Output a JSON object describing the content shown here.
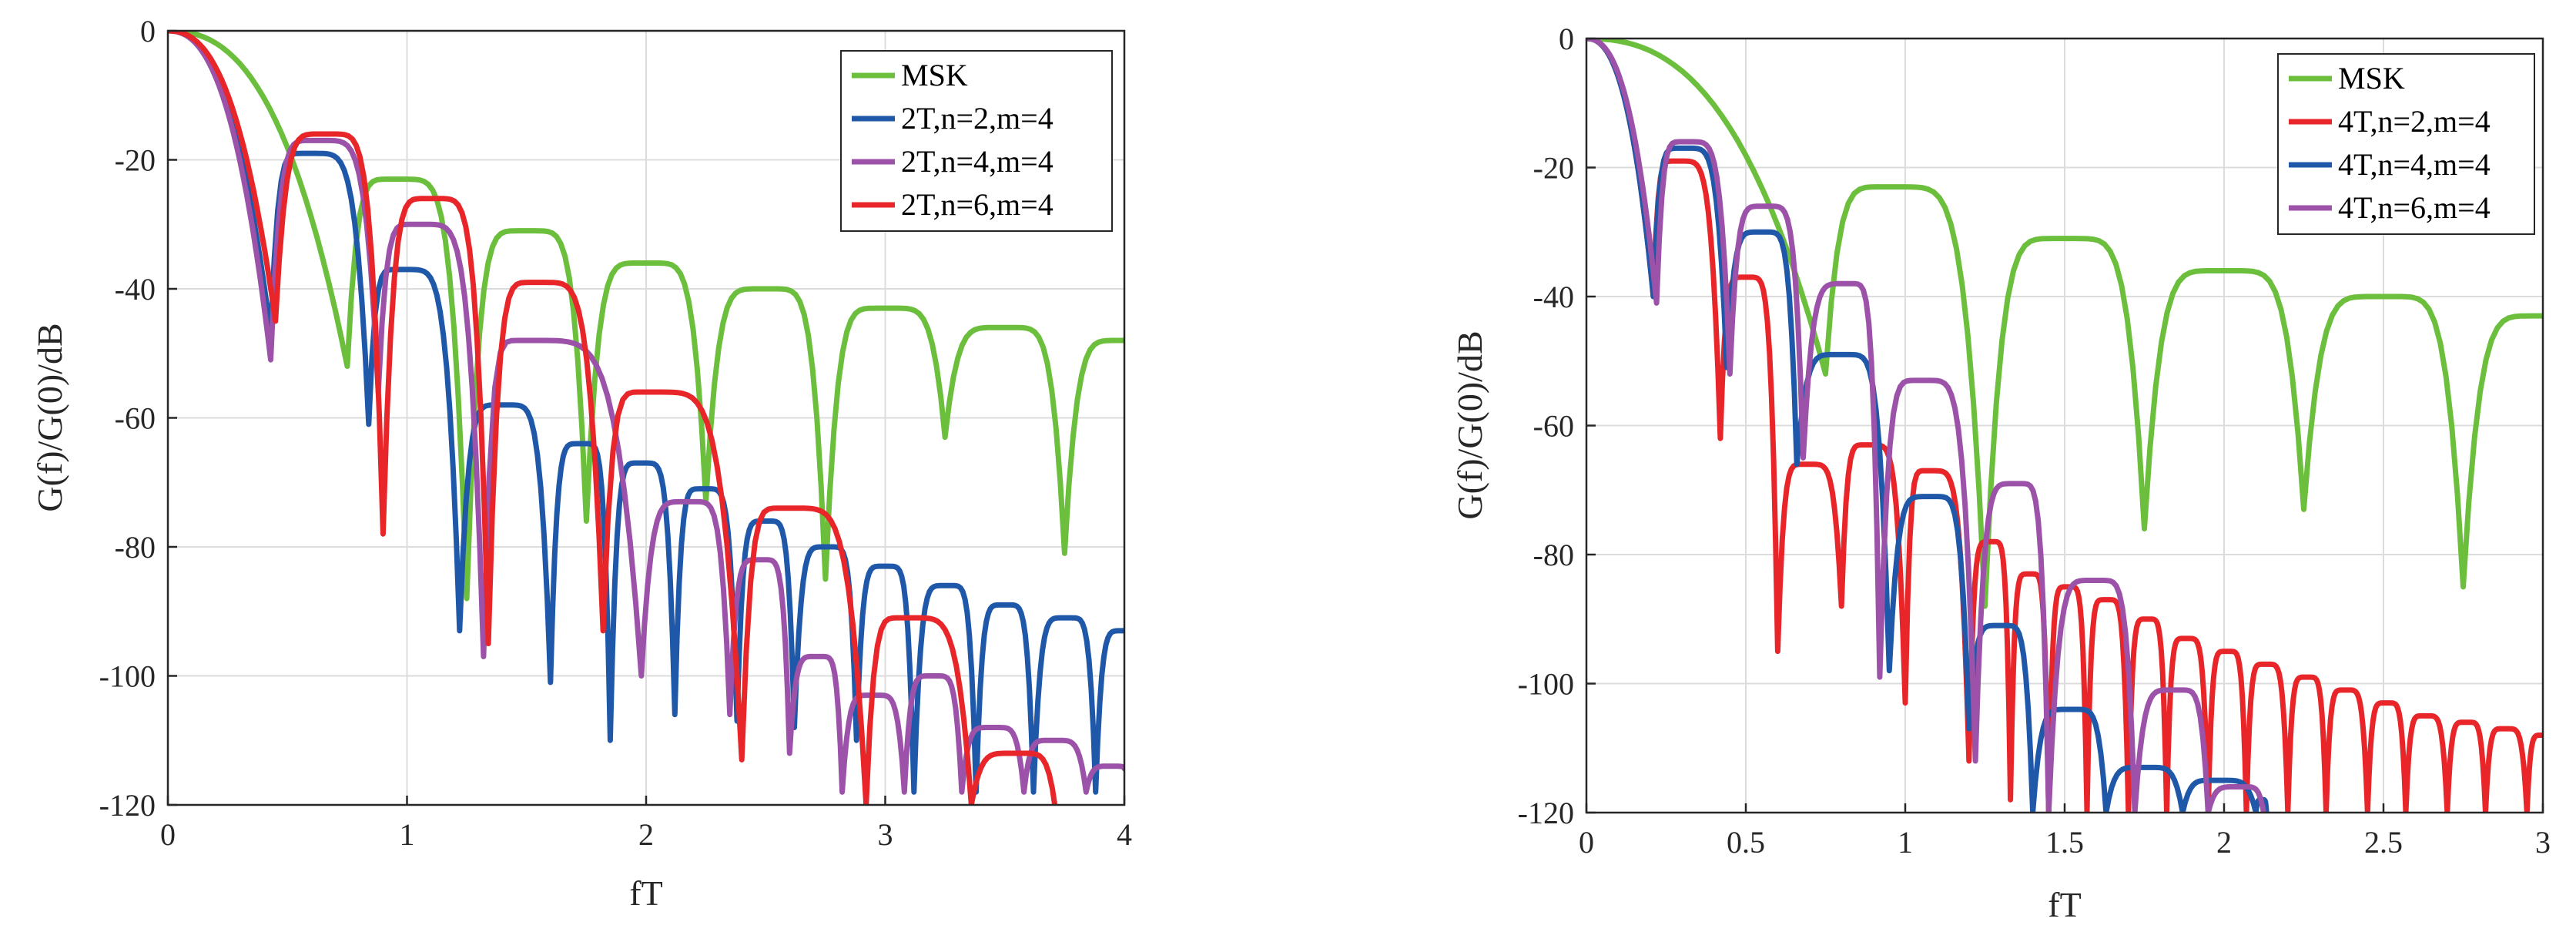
{
  "chart_data": [
    {
      "type": "line",
      "xlabel": "fT",
      "ylabel": "G(f)/G(0)/dB",
      "xlim": [
        0,
        4
      ],
      "ylim": [
        -120,
        0
      ],
      "xticks": [
        0,
        1,
        2,
        3,
        4
      ],
      "xtick_labels": [
        "0",
        "1",
        "2",
        "3",
        "4"
      ],
      "yticks": [
        0,
        -20,
        -40,
        -60,
        -80,
        -100,
        -120
      ],
      "ytick_labels": [
        "0",
        "-20",
        "-40",
        "-60",
        "-80",
        "-100",
        "-120"
      ],
      "grid": true,
      "legend_position": "top-right",
      "series": [
        {
          "name": "MSK",
          "color": "#6cbf3c",
          "nulls": [
            0.75,
            1.25,
            1.75,
            2.25,
            2.75,
            3.25,
            3.75
          ],
          "peaks": [
            [
              0.95,
              -23
            ],
            [
              1.5,
              -31
            ],
            [
              2.0,
              -36
            ],
            [
              2.5,
              -40
            ],
            [
              3.0,
              -43
            ],
            [
              3.5,
              -46
            ],
            [
              4.0,
              -48
            ]
          ],
          "null_depth": [
            -52,
            -88,
            -76,
            -73,
            -85,
            -63,
            -81
          ]
        },
        {
          "name": "2T,n=2,m=4",
          "color": "#1f58a8",
          "nulls": [
            0.43,
            0.84,
            1.22,
            1.6,
            1.85,
            2.12,
            2.38,
            2.62,
            2.88,
            3.12,
            3.38,
            3.62,
            3.88
          ],
          "peaks": [
            [
              0.58,
              -19
            ],
            [
              0.97,
              -37
            ],
            [
              1.4,
              -58
            ],
            [
              1.73,
              -64
            ],
            [
              1.98,
              -67
            ],
            [
              2.24,
              -71
            ],
            [
              2.5,
              -76
            ],
            [
              2.76,
              -80
            ],
            [
              3.0,
              -83
            ],
            [
              3.26,
              -86
            ],
            [
              3.5,
              -89
            ],
            [
              3.76,
              -91
            ],
            [
              4.0,
              -93
            ]
          ],
          "null_depth": [
            -47,
            -61,
            -93,
            -101,
            -110,
            -106,
            -107,
            -108,
            -110,
            -118,
            -118,
            -118,
            -118
          ]
        },
        {
          "name": "2T,n=4,m=4",
          "color": "#9b52a8",
          "nulls": [
            0.43,
            0.88,
            1.32,
            1.98,
            2.35,
            2.6,
            2.82,
            3.08,
            3.32,
            3.58,
            3.84
          ],
          "peaks": [
            [
              0.62,
              -17
            ],
            [
              1.04,
              -30
            ],
            [
              1.48,
              -48
            ],
            [
              2.18,
              -73
            ],
            [
              2.48,
              -82
            ],
            [
              2.72,
              -97
            ],
            [
              2.95,
              -103
            ],
            [
              3.2,
              -100
            ],
            [
              3.45,
              -108
            ],
            [
              3.7,
              -110
            ],
            [
              3.95,
              -114
            ]
          ],
          "null_depth": [
            -51,
            -56,
            -97,
            -100,
            -106,
            -112,
            -118,
            -118,
            -118,
            -118,
            -118
          ]
        },
        {
          "name": "2T,n=6,m=4",
          "color": "#e8262a",
          "nulls": [
            0.45,
            0.9,
            1.34,
            1.82,
            2.4,
            2.92,
            3.36
          ],
          "peaks": [
            [
              0.66,
              -16
            ],
            [
              1.1,
              -26
            ],
            [
              1.54,
              -39
            ],
            [
              2.0,
              -56
            ],
            [
              2.58,
              -74
            ],
            [
              3.08,
              -91
            ],
            [
              3.55,
              -112
            ]
          ],
          "null_depth": [
            -45,
            -78,
            -95,
            -93,
            -113,
            -120,
            -120
          ]
        }
      ]
    },
    {
      "type": "line",
      "xlabel": "fT",
      "ylabel": "G(f)/G(0)/dB",
      "xlim": [
        0,
        3
      ],
      "ylim": [
        -120,
        0
      ],
      "xticks": [
        0,
        0.5,
        1,
        1.5,
        2,
        2.5,
        3
      ],
      "xtick_labels": [
        "0",
        "0.5",
        "1",
        "1.5",
        "2",
        "2.5",
        "3"
      ],
      "yticks": [
        0,
        -20,
        -40,
        -60,
        -80,
        -100,
        -120
      ],
      "ytick_labels": [
        "0",
        "-20",
        "-40",
        "-60",
        "-80",
        "-100",
        "-120"
      ],
      "grid": true,
      "legend_position": "top-right",
      "series": [
        {
          "name": "MSK",
          "color": "#6cbf3c",
          "nulls": [
            0.75,
            1.25,
            1.75,
            2.25,
            2.75
          ],
          "peaks": [
            [
              0.95,
              -23
            ],
            [
              1.5,
              -31
            ],
            [
              2.0,
              -36
            ],
            [
              2.5,
              -40
            ],
            [
              3.0,
              -43
            ]
          ],
          "null_depth": [
            -52,
            -88,
            -76,
            -73,
            -85
          ]
        },
        {
          "name": "4T,n=2,m=4",
          "color": "#e8262a",
          "nulls": [
            0.21,
            0.42,
            0.6,
            0.8,
            1.0,
            1.2,
            1.33,
            1.45,
            1.57,
            1.7,
            1.82,
            1.95,
            2.07,
            2.2,
            2.32,
            2.45,
            2.57,
            2.7,
            2.82,
            2.95
          ],
          "peaks": [
            [
              0.28,
              -19
            ],
            [
              0.5,
              -37
            ],
            [
              0.69,
              -66
            ],
            [
              0.88,
              -63
            ],
            [
              1.07,
              -67
            ],
            [
              1.27,
              -78
            ],
            [
              1.39,
              -83
            ],
            [
              1.51,
              -85
            ],
            [
              1.63,
              -87
            ],
            [
              1.76,
              -90
            ],
            [
              1.88,
              -93
            ],
            [
              2.01,
              -95
            ],
            [
              2.13,
              -97
            ],
            [
              2.26,
              -99
            ],
            [
              2.38,
              -101
            ],
            [
              2.51,
              -103
            ],
            [
              2.63,
              -105
            ],
            [
              2.76,
              -106
            ],
            [
              2.88,
              -107
            ],
            [
              3.0,
              -108
            ]
          ],
          "null_depth": [
            -40,
            -62,
            -95,
            -88,
            -103,
            -112,
            -118,
            -120,
            -120,
            -120,
            -120,
            -120,
            -120,
            -120,
            -120,
            -120,
            -120,
            -120,
            -120,
            -120
          ]
        },
        {
          "name": "4T,n=4,m=4",
          "color": "#1f58a8",
          "nulls": [
            0.21,
            0.44,
            0.66,
            0.95,
            1.2,
            1.4,
            1.63,
            1.87,
            2.1
          ],
          "peaks": [
            [
              0.3,
              -17
            ],
            [
              0.55,
              -30
            ],
            [
              0.8,
              -49
            ],
            [
              1.08,
              -71
            ],
            [
              1.3,
              -91
            ],
            [
              1.52,
              -104
            ],
            [
              1.75,
              -113
            ],
            [
              1.98,
              -115
            ],
            [
              2.12,
              -118
            ]
          ],
          "null_depth": [
            -40,
            -51,
            -66,
            -98,
            -107,
            -120,
            -120,
            -120,
            -120
          ]
        },
        {
          "name": "4T,n=6,m=4",
          "color": "#9b52a8",
          "nulls": [
            0.22,
            0.45,
            0.68,
            0.92,
            1.22,
            1.45,
            1.72,
            1.95
          ],
          "peaks": [
            [
              0.31,
              -16
            ],
            [
              0.56,
              -26
            ],
            [
              0.82,
              -38
            ],
            [
              1.05,
              -53
            ],
            [
              1.35,
              -69
            ],
            [
              1.6,
              -84
            ],
            [
              1.85,
              -101
            ],
            [
              2.05,
              -116
            ]
          ],
          "null_depth": [
            -41,
            -52,
            -65,
            -99,
            -112,
            -120,
            -120,
            -120
          ]
        }
      ]
    }
  ]
}
